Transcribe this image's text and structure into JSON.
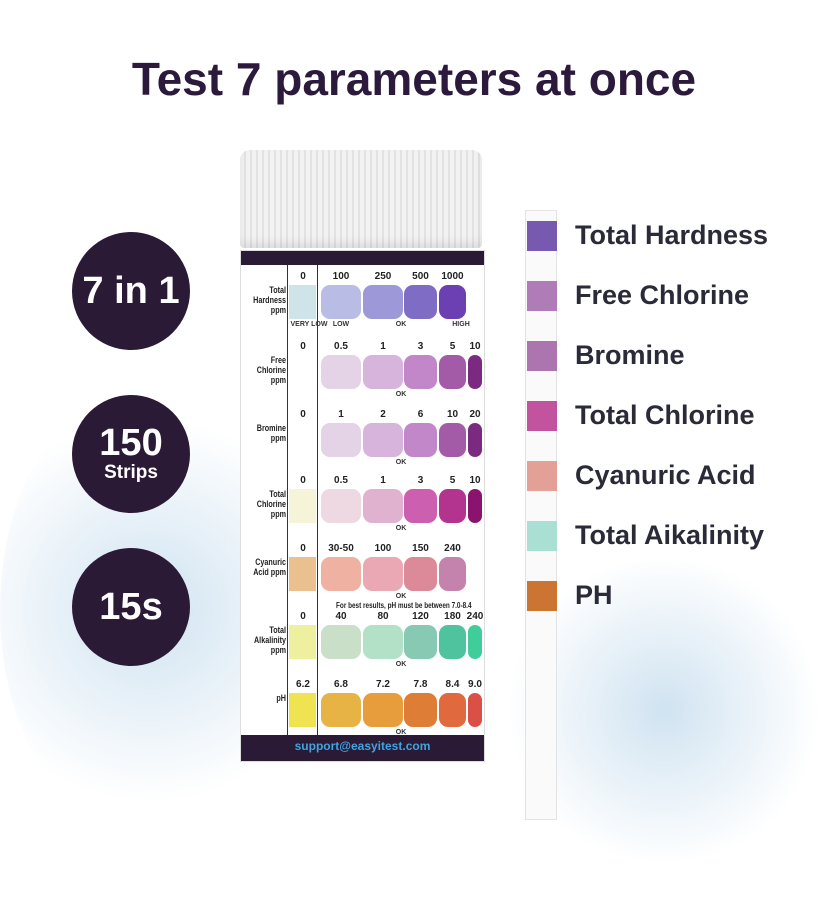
{
  "title": "Test 7 parameters at once",
  "badges": [
    {
      "big": "7 in 1",
      "small": ""
    },
    {
      "big": "150",
      "small": "Strips"
    },
    {
      "big": "15s",
      "small": ""
    }
  ],
  "bottle": {
    "website": "support@easyitest.com",
    "note": "For best results, pH must be between 7.0-8.4",
    "ok_label": "OK",
    "rows": [
      {
        "name": "Total Hardness ppm",
        "values": [
          "0",
          "100",
          "250",
          "500",
          "1000"
        ],
        "colors": [
          "#cfe4e8",
          "#b9bde6",
          "#9d98d8",
          "#7f6cc4",
          "#6c3fb2"
        ],
        "sublabels": [
          "VERY LOW",
          "LOW",
          "OK",
          "HIGH"
        ]
      },
      {
        "name": "Free Chlorine ppm",
        "values": [
          "0",
          "0.5",
          "1",
          "3",
          "5",
          "10"
        ],
        "colors": [
          "#ffffff",
          "#e4d3e6",
          "#d6b4dc",
          "#c287c8",
          "#a35ba8",
          "#7a2a80"
        ]
      },
      {
        "name": "Bromine ppm",
        "values": [
          "0",
          "1",
          "2",
          "6",
          "10",
          "20"
        ],
        "colors": [
          "#ffffff",
          "#e4d3e6",
          "#d6b4dc",
          "#c287c8",
          "#a35ba8",
          "#7a2a80"
        ]
      },
      {
        "name": "Total Chlorine ppm",
        "values": [
          "0",
          "0.5",
          "1",
          "3",
          "5",
          "10"
        ],
        "colors": [
          "#f6f4d8",
          "#eed9e2",
          "#e0b2cf",
          "#cc5fb0",
          "#b3348f",
          "#8a1370"
        ]
      },
      {
        "name": "Cyanuric Acid ppm",
        "values": [
          "0",
          "30-50",
          "100",
          "150",
          "240"
        ],
        "colors": [
          "#e9c08e",
          "#efb2a2",
          "#eaa8b4",
          "#dc8a9a",
          "#c483ad"
        ]
      },
      {
        "name": "Total Alkalinity ppm",
        "values": [
          "0",
          "40",
          "80",
          "120",
          "180",
          "240"
        ],
        "colors": [
          "#eef0a0",
          "#c9dfc8",
          "#b3e1c8",
          "#87c9b3",
          "#4fc39e",
          "#3fce9a"
        ]
      },
      {
        "name": "pH",
        "values": [
          "6.2",
          "6.8",
          "7.2",
          "7.8",
          "8.4",
          "9.0"
        ],
        "colors": [
          "#efe352",
          "#e8b345",
          "#e79d3b",
          "#de7d36",
          "#e06a3d",
          "#da5046"
        ]
      }
    ]
  },
  "legend": [
    {
      "label": "Total Hardness",
      "color": "#7759b0"
    },
    {
      "label": "Free Chlorine",
      "color": "#b07cb8"
    },
    {
      "label": "Bromine",
      "color": "#ad75b0"
    },
    {
      "label": "Total Chlorine",
      "color": "#c2539e"
    },
    {
      "label": "Cyanuric Acid",
      "color": "#e3a096"
    },
    {
      "label": "Total Aikalinity",
      "color": "#a9e0d3"
    },
    {
      "label": "PH",
      "color": "#cc7432"
    }
  ]
}
